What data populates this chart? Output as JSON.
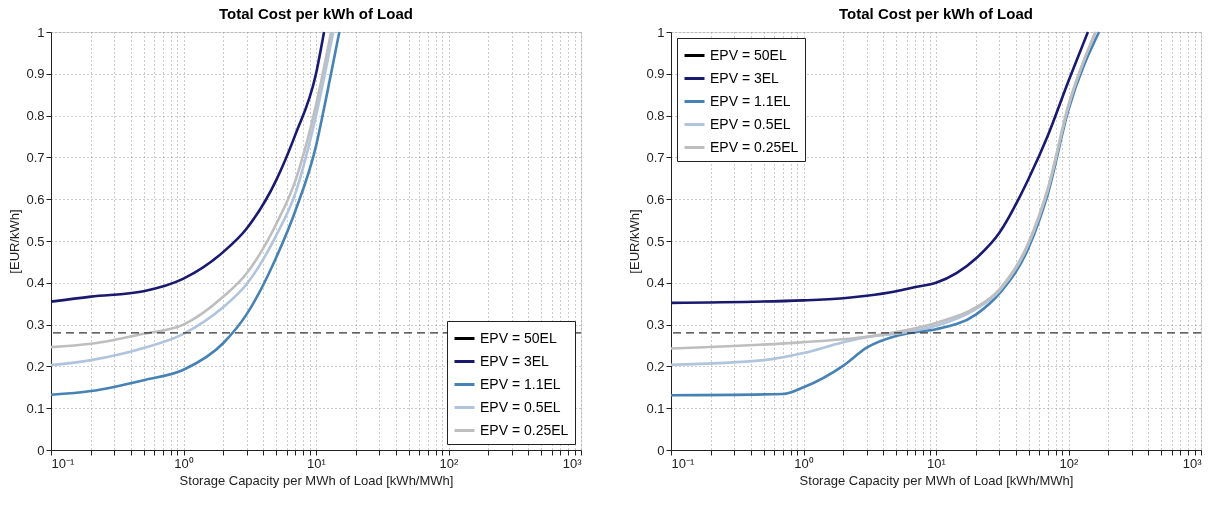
{
  "chart_data": [
    {
      "type": "line",
      "title": "Total Cost per kWh of Load",
      "xlabel": "Storage Capacity per MWh of Load [kWh/MWh]",
      "ylabel": "[EUR/kWh]",
      "log": "x",
      "grid": true,
      "legend": "bottom right",
      "line_style": "solid",
      "marker": "none",
      "xlim": [
        0.1,
        1000
      ],
      "ylim": [
        0,
        1
      ],
      "xticks": [
        {
          "value": 0.1,
          "label": "10⁻¹"
        },
        {
          "value": 0.2,
          "label": null
        },
        {
          "value": 0.3,
          "label": null
        },
        {
          "value": 0.4,
          "label": null
        },
        {
          "value": 0.5,
          "label": null
        },
        {
          "value": 0.6,
          "label": null
        },
        {
          "value": 0.7,
          "label": null
        },
        {
          "value": 0.8,
          "label": null
        },
        {
          "value": 0.9,
          "label": null
        },
        {
          "value": 1,
          "label": "10⁰"
        },
        {
          "value": 2,
          "label": null
        },
        {
          "value": 3,
          "label": null
        },
        {
          "value": 4,
          "label": null
        },
        {
          "value": 5,
          "label": null
        },
        {
          "value": 6,
          "label": null
        },
        {
          "value": 7,
          "label": null
        },
        {
          "value": 8,
          "label": null
        },
        {
          "value": 9,
          "label": null
        },
        {
          "value": 10,
          "label": "10¹"
        },
        {
          "value": 20,
          "label": null
        },
        {
          "value": 30,
          "label": null
        },
        {
          "value": 40,
          "label": null
        },
        {
          "value": 50,
          "label": null
        },
        {
          "value": 60,
          "label": null
        },
        {
          "value": 70,
          "label": null
        },
        {
          "value": 80,
          "label": null
        },
        {
          "value": 90,
          "label": null
        },
        {
          "value": 100,
          "label": "10²"
        },
        {
          "value": 200,
          "label": null
        },
        {
          "value": 300,
          "label": null
        },
        {
          "value": 400,
          "label": null
        },
        {
          "value": 500,
          "label": null
        },
        {
          "value": 600,
          "label": null
        },
        {
          "value": 700,
          "label": null
        },
        {
          "value": 800,
          "label": null
        },
        {
          "value": 900,
          "label": null
        },
        {
          "value": 1000,
          "label": "10³"
        }
      ],
      "yticks": [
        0,
        0.1,
        0.2,
        0.3,
        0.4,
        0.5,
        0.6,
        0.7,
        0.8,
        0.9,
        1
      ],
      "ref_lines": [
        {
          "axis": "y",
          "value": 0.28,
          "label": null,
          "color": "#333333",
          "line_style": "dashed"
        }
      ],
      "series": [
        {
          "name": "EPV = 50EL",
          "color": "#000000"
        },
        {
          "name": "EPV = 3EL",
          "color": "#191970",
          "x": [
            0.1,
            0.2,
            0.5,
            1,
            2,
            3,
            5,
            7,
            10,
            11.5
          ],
          "values": [
            0.355,
            0.367,
            0.38,
            0.41,
            0.474,
            0.53,
            0.645,
            0.755,
            0.9,
            1.0
          ]
        },
        {
          "name": "EPV = 1.1EL",
          "color": "#4682b4",
          "x": [
            0.1,
            0.2,
            0.5,
            1,
            2,
            3,
            5,
            7,
            10,
            12,
            15
          ],
          "values": [
            0.132,
            0.141,
            0.167,
            0.192,
            0.256,
            0.325,
            0.46,
            0.573,
            0.727,
            0.846,
            1.0
          ]
        },
        {
          "name": "EPV = 0.5EL",
          "color": "#b0c4de",
          "x": [
            0.1,
            0.2,
            0.5,
            1,
            2,
            3,
            5,
            7,
            10,
            13.5
          ],
          "values": [
            0.203,
            0.215,
            0.244,
            0.278,
            0.342,
            0.397,
            0.513,
            0.615,
            0.8,
            1.0
          ]
        },
        {
          "name": "EPV = 0.25EL",
          "color": "#bebebe",
          "x": [
            0.1,
            0.2,
            0.5,
            1,
            2,
            3,
            5,
            7,
            10,
            13
          ],
          "values": [
            0.246,
            0.254,
            0.278,
            0.3,
            0.367,
            0.423,
            0.54,
            0.645,
            0.825,
            1.0
          ]
        }
      ]
    },
    {
      "type": "line",
      "title": "Total Cost per kWh of Load",
      "xlabel": "Storage Capacity per MWh of Load [kWh/MWh]",
      "ylabel": "[EUR/kWh]",
      "log": "x",
      "grid": true,
      "legend": "top left",
      "line_style": "solid",
      "marker": "none",
      "xlim": [
        0.1,
        1000
      ],
      "ylim": [
        0,
        1
      ],
      "xticks": [
        {
          "value": 0.1,
          "label": "10⁻¹"
        },
        {
          "value": 0.2,
          "label": null
        },
        {
          "value": 0.3,
          "label": null
        },
        {
          "value": 0.4,
          "label": null
        },
        {
          "value": 0.5,
          "label": null
        },
        {
          "value": 0.6,
          "label": null
        },
        {
          "value": 0.7,
          "label": null
        },
        {
          "value": 0.8,
          "label": null
        },
        {
          "value": 0.9,
          "label": null
        },
        {
          "value": 1,
          "label": "10⁰"
        },
        {
          "value": 2,
          "label": null
        },
        {
          "value": 3,
          "label": null
        },
        {
          "value": 4,
          "label": null
        },
        {
          "value": 5,
          "label": null
        },
        {
          "value": 6,
          "label": null
        },
        {
          "value": 7,
          "label": null
        },
        {
          "value": 8,
          "label": null
        },
        {
          "value": 9,
          "label": null
        },
        {
          "value": 10,
          "label": "10¹"
        },
        {
          "value": 20,
          "label": null
        },
        {
          "value": 30,
          "label": null
        },
        {
          "value": 40,
          "label": null
        },
        {
          "value": 50,
          "label": null
        },
        {
          "value": 60,
          "label": null
        },
        {
          "value": 70,
          "label": null
        },
        {
          "value": 80,
          "label": null
        },
        {
          "value": 90,
          "label": null
        },
        {
          "value": 100,
          "label": "10²"
        },
        {
          "value": 200,
          "label": null
        },
        {
          "value": 300,
          "label": null
        },
        {
          "value": 400,
          "label": null
        },
        {
          "value": 500,
          "label": null
        },
        {
          "value": 600,
          "label": null
        },
        {
          "value": 700,
          "label": null
        },
        {
          "value": 800,
          "label": null
        },
        {
          "value": 900,
          "label": null
        },
        {
          "value": 1000,
          "label": "10³"
        }
      ],
      "yticks": [
        0,
        0.1,
        0.2,
        0.3,
        0.4,
        0.5,
        0.6,
        0.7,
        0.8,
        0.9,
        1
      ],
      "ref_lines": [
        {
          "axis": "y",
          "value": 0.28,
          "label": null,
          "color": "#333333",
          "line_style": "dashed"
        }
      ],
      "series": [
        {
          "name": "EPV = 50EL",
          "color": "#000000"
        },
        {
          "name": "EPV = 3EL",
          "color": "#191970",
          "x": [
            0.1,
            1,
            2,
            3,
            5,
            7,
            10,
            20,
            30,
            50,
            70,
            100,
            130,
            140
          ],
          "values": [
            0.352,
            0.358,
            0.363,
            0.369,
            0.38,
            0.39,
            0.4,
            0.458,
            0.519,
            0.649,
            0.753,
            0.883,
            0.974,
            1.0
          ]
        },
        {
          "name": "EPV = 1.1EL",
          "color": "#4682b4",
          "x": [
            0.1,
            0.7,
            1,
            2,
            3,
            5,
            7,
            10,
            20,
            30,
            50,
            70,
            100,
            170
          ],
          "values": [
            0.131,
            0.134,
            0.15,
            0.202,
            0.245,
            0.273,
            0.282,
            0.289,
            0.324,
            0.374,
            0.484,
            0.614,
            0.814,
            1.0
          ]
        },
        {
          "name": "EPV = 0.5EL",
          "color": "#b0c4de",
          "x": [
            0.1,
            0.5,
            1,
            2,
            3,
            5,
            10,
            20,
            30,
            50,
            70,
            100,
            160
          ],
          "values": [
            0.204,
            0.215,
            0.232,
            0.258,
            0.27,
            0.278,
            0.297,
            0.337,
            0.38,
            0.493,
            0.623,
            0.822,
            1.0
          ]
        },
        {
          "name": "EPV = 0.25EL",
          "color": "#bebebe",
          "x": [
            0.1,
            1,
            3,
            5,
            10,
            20,
            30,
            50,
            70,
            100,
            160
          ],
          "values": [
            0.243,
            0.258,
            0.271,
            0.282,
            0.304,
            0.341,
            0.384,
            0.497,
            0.627,
            0.826,
            1.0
          ]
        }
      ]
    }
  ]
}
